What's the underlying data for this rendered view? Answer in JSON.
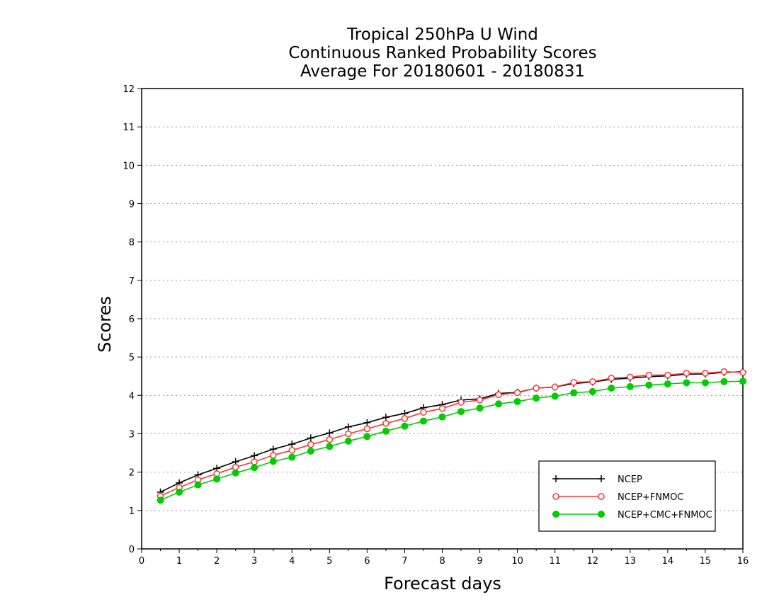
{
  "chart_data": {
    "type": "line",
    "title_lines": [
      "Tropical 250hPa U Wind",
      "Continuous Ranked Probability Scores",
      "Average For 20180601 - 20180831"
    ],
    "xlabel": "Forecast days",
    "ylabel": "Scores",
    "xlim": [
      0,
      16
    ],
    "ylim": [
      0,
      12
    ],
    "xticks": [
      0,
      1,
      2,
      3,
      4,
      5,
      6,
      7,
      8,
      9,
      10,
      11,
      12,
      13,
      14,
      15,
      16
    ],
    "yticks": [
      0,
      1,
      2,
      3,
      4,
      5,
      6,
      7,
      8,
      9,
      10,
      11,
      12
    ],
    "grid": "horizontal dotted",
    "legend_position": "lower-right",
    "x": [
      0.5,
      1,
      1.5,
      2,
      2.5,
      3,
      3.5,
      4,
      4.5,
      5,
      5.5,
      6,
      6.5,
      7,
      7.5,
      8,
      8.5,
      9,
      9.5,
      10,
      10.5,
      11,
      11.5,
      12,
      12.5,
      13,
      13.5,
      14,
      14.5,
      15,
      15.5,
      16
    ],
    "series": [
      {
        "name": "NCEP",
        "color": "#000000",
        "marker": "plus",
        "values": [
          1.48,
          1.72,
          1.93,
          2.1,
          2.27,
          2.43,
          2.6,
          2.73,
          2.89,
          3.02,
          3.18,
          3.29,
          3.43,
          3.53,
          3.68,
          3.76,
          3.88,
          3.91,
          4.05,
          4.08,
          4.19,
          4.22,
          4.31,
          4.35,
          4.42,
          4.45,
          4.49,
          4.51,
          4.55,
          4.56,
          4.6,
          4.62
        ]
      },
      {
        "name": "NCEP+FNMOC",
        "color": "#ff3333",
        "marker": "open-circle",
        "values": [
          1.38,
          1.6,
          1.8,
          1.96,
          2.13,
          2.27,
          2.44,
          2.57,
          2.72,
          2.85,
          3.0,
          3.13,
          3.27,
          3.4,
          3.56,
          3.66,
          3.82,
          3.88,
          4.02,
          4.07,
          4.19,
          4.22,
          4.34,
          4.36,
          4.45,
          4.48,
          4.53,
          4.53,
          4.58,
          4.58,
          4.62,
          4.6
        ]
      },
      {
        "name": "NCEP+CMC+FNMOC",
        "color": "#00cc00",
        "marker": "filled-circle",
        "values": [
          1.27,
          1.48,
          1.67,
          1.82,
          1.98,
          2.12,
          2.28,
          2.39,
          2.55,
          2.67,
          2.81,
          2.93,
          3.07,
          3.2,
          3.33,
          3.44,
          3.58,
          3.67,
          3.78,
          3.84,
          3.93,
          3.98,
          4.07,
          4.1,
          4.19,
          4.23,
          4.27,
          4.3,
          4.33,
          4.33,
          4.36,
          4.37
        ]
      }
    ]
  }
}
